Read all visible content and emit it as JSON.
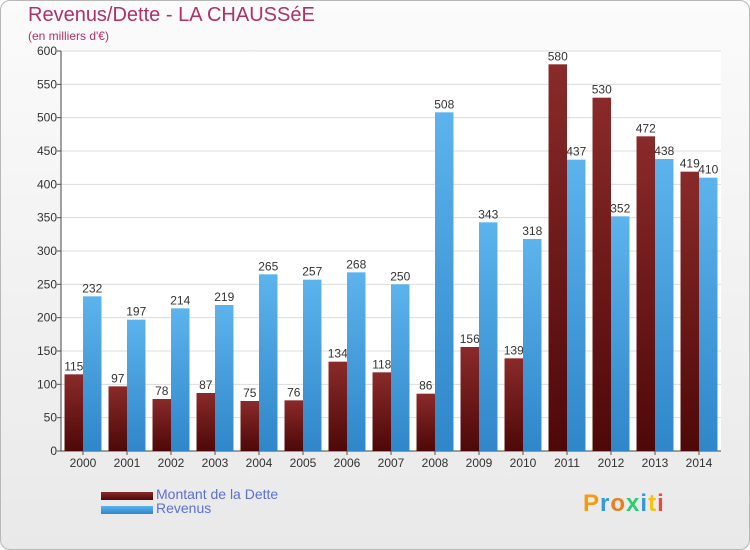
{
  "colors": {
    "title": "#b0306a",
    "dette_top": "#8a2a2a",
    "dette_bottom": "#4e0808",
    "revenus_top": "#5db3ec",
    "revenus_bottom": "#2f86c9",
    "legend_text": "#5a6fd8"
  },
  "chart_data": {
    "type": "bar",
    "title": "Revenus/Dette - LA CHAUSSéE",
    "subtitle": "(en milliers d'€)",
    "xlabel": "",
    "ylabel": "",
    "ylim": [
      0,
      600
    ],
    "yticks": [
      0,
      50,
      100,
      150,
      200,
      250,
      300,
      350,
      400,
      450,
      500,
      550,
      600
    ],
    "grid": true,
    "legend_position": "bottom-left",
    "categories": [
      "2000",
      "2001",
      "2002",
      "2003",
      "2004",
      "2005",
      "2006",
      "2007",
      "2008",
      "2009",
      "2010",
      "2011",
      "2012",
      "2013",
      "2014"
    ],
    "series": [
      {
        "name": "Montant de la Dette",
        "values": [
          115,
          97,
          78,
          87,
          75,
          76,
          134,
          118,
          86,
          156,
          139,
          580,
          530,
          472,
          419
        ]
      },
      {
        "name": "Revenus",
        "values": [
          232,
          197,
          214,
          219,
          265,
          257,
          268,
          250,
          508,
          343,
          318,
          437,
          352,
          438,
          410
        ]
      }
    ]
  },
  "logo": {
    "letters": [
      "P",
      "r",
      "o",
      "x",
      "i",
      "t",
      "i"
    ],
    "letter_colors": [
      "#f39c12",
      "#3498db",
      "#e67e22",
      "#2ecc71",
      "#3498db",
      "#f1c40f",
      "#e74c3c"
    ]
  }
}
